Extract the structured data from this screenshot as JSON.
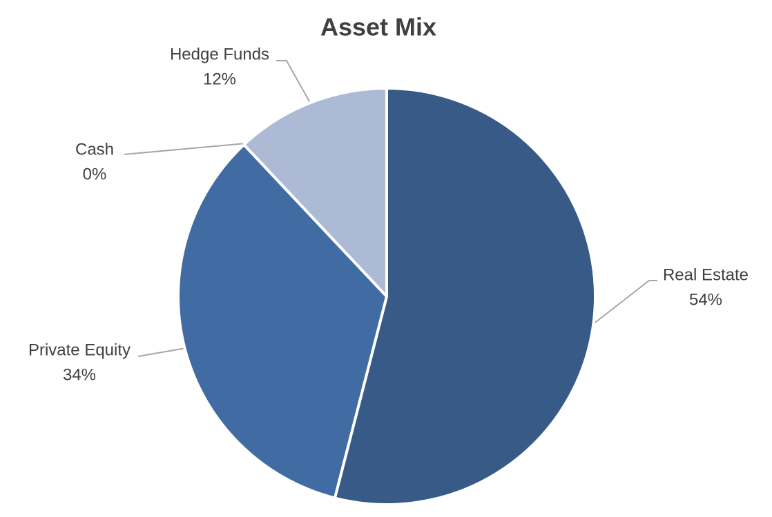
{
  "chart_data": {
    "type": "pie",
    "title": "Asset Mix",
    "categories": [
      "Real Estate",
      "Private Equity",
      "Cash",
      "Hedge Funds"
    ],
    "values": [
      54,
      34,
      0,
      12
    ],
    "value_labels": [
      "54%",
      "34%",
      "0%",
      "12%"
    ],
    "colors": [
      "#375a87",
      "#416ba3",
      "#7f9cc9",
      "#adbad6"
    ]
  }
}
